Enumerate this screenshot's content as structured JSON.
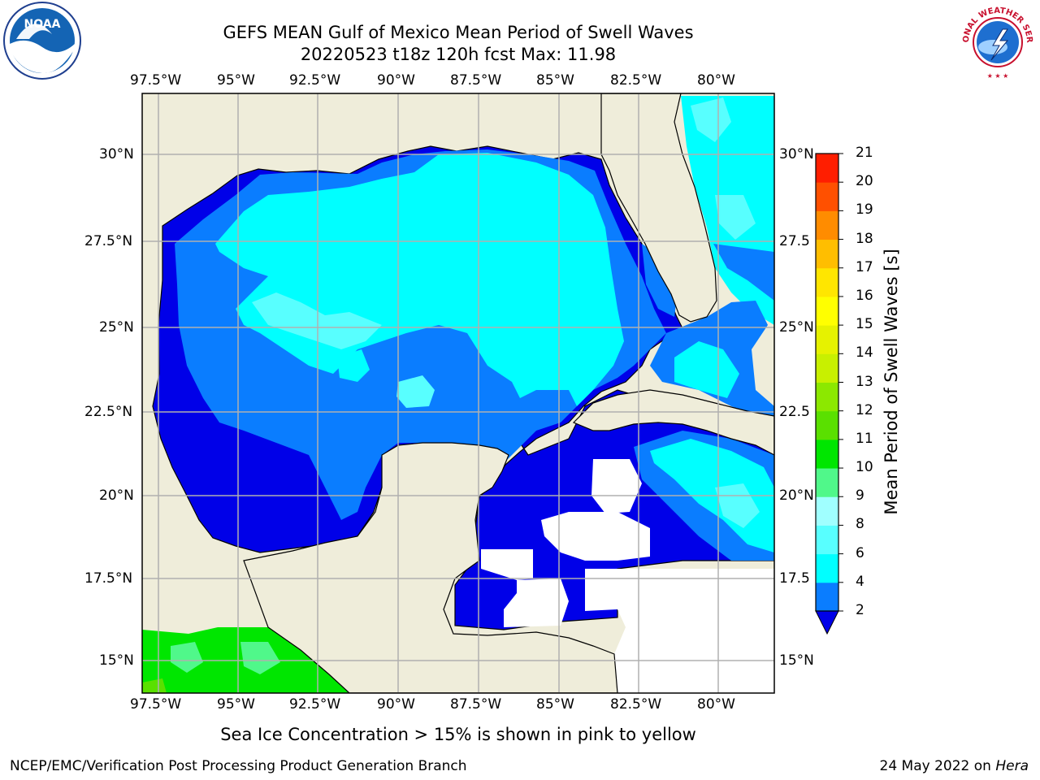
{
  "title": {
    "line1": "GEFS MEAN Gulf of Mexico Mean Period of Swell Waves",
    "line2": "20220523 t18z 120h fcst   Max: 11.98"
  },
  "map": {
    "lon_labels": [
      "97.5°W",
      "95°W",
      "92.5°W",
      "90°W",
      "87.5°W",
      "85°W",
      "82.5°W",
      "80°W"
    ],
    "lat_labels_left": [
      "30°N",
      "27.5°N",
      "25°N",
      "22.5°N",
      "20°N",
      "17.5°N",
      "15°N"
    ],
    "lat_labels_right": [
      "30°N",
      "27.5",
      "25°N",
      "22.5",
      "20°N",
      "17.5",
      "15°N"
    ],
    "extent": {
      "lon_min": -98.0,
      "lon_max": -78.3,
      "lat_min": 14.0,
      "lat_max": 31.8
    },
    "gridlines": true,
    "colors": {
      "land": "#efedda",
      "no_data": "#ffffff",
      "grid": "#b0b0b0"
    }
  },
  "colorbar": {
    "title": "Mean Period of Swell Waves [s]",
    "ticks": [
      "21",
      "20",
      "19",
      "18",
      "17",
      "16",
      "15",
      "14",
      "13",
      "12",
      "11",
      "10",
      "9",
      "8",
      "6",
      "4",
      "2"
    ],
    "levels": [
      2,
      4,
      6,
      8,
      9,
      10,
      11,
      12,
      13,
      14,
      15,
      16,
      17,
      18,
      19,
      20,
      21
    ],
    "colors": [
      "#0a7dff",
      "#00ffff",
      "#58ffff",
      "#a0ffff",
      "#50f88a",
      "#00e600",
      "#5ae000",
      "#8ce800",
      "#c8f000",
      "#e6f200",
      "#ffff00",
      "#ffe600",
      "#ffbe00",
      "#ff8c00",
      "#ff5000",
      "#ff1e00"
    ],
    "under_color": "#0000e8",
    "extend": "min"
  },
  "sea_ice_note": "Sea Ice Concentration > 15% is shown in pink to yellow",
  "footer": {
    "left": "NCEP/EMC/Verification Post Processing Product Generation Branch",
    "right_date": "24 May 2022 on",
    "right_host": "Hera"
  },
  "logos": {
    "left": {
      "icon": "noaa-logo",
      "text": "NOAA"
    },
    "right": {
      "icon": "nws-logo",
      "text": "NATIONAL WEATHER SERVICE"
    }
  }
}
